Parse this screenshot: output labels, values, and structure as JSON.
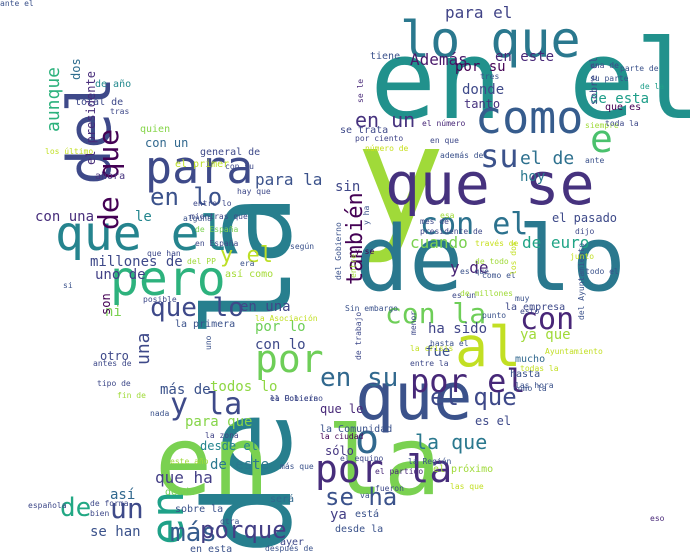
{
  "words": [
    {
      "text": "y",
      "color": "#a0da39"
    },
    {
      "text": "de la",
      "color": "#277f8e"
    },
    {
      "text": "en el",
      "color": "#21918c"
    },
    {
      "text": "en la",
      "color": "#7ad151"
    },
    {
      "text": "de lo",
      "color": "#2a788e"
    },
    {
      "text": "que se",
      "color": "#46327e"
    },
    {
      "text": "del",
      "color": "#3e4989"
    },
    {
      "text": "lo que",
      "color": "#2a788e"
    },
    {
      "text": "como",
      "color": "#365c8d"
    },
    {
      "text": "para",
      "color": "#3e4a89"
    },
    {
      "text": "que el",
      "color": "#25848e"
    },
    {
      "text": "pero",
      "color": "#2db27d"
    },
    {
      "text": "que",
      "color": "#3b528b"
    },
    {
      "text": "al",
      "color": "#c2df23"
    },
    {
      "text": "en",
      "color": "#1fa188"
    },
    {
      "text": "por la",
      "color": "#472d7b"
    },
    {
      "text": "o",
      "color": "#31688e"
    },
    {
      "text": "por el",
      "color": "#472878"
    },
    {
      "text": "e",
      "color": "#4ac16d"
    },
    {
      "text": "con el",
      "color": "#2c728e"
    },
    {
      "text": "por",
      "color": "#6ece58"
    },
    {
      "text": "su",
      "color": "#3b528b"
    },
    {
      "text": "en su",
      "color": "#31688e"
    },
    {
      "text": "y la",
      "color": "#3e4a89"
    },
    {
      "text": "de que",
      "color": "#440154"
    },
    {
      "text": "con la",
      "color": "#6ece58"
    },
    {
      "text": "con",
      "color": "#482677"
    },
    {
      "text": "que lo",
      "color": "#3e4989"
    },
    {
      "text": "en lo",
      "color": "#3b528b"
    },
    {
      "text": "el que",
      "color": "#3e4989"
    },
    {
      "text": "se ha",
      "color": "#3b528b"
    },
    {
      "text": "de",
      "color": "#22a884"
    },
    {
      "text": "un",
      "color": "#3e4a89"
    },
    {
      "text": "más",
      "color": "#365c8d"
    },
    {
      "text": "porque",
      "color": "#433e85"
    },
    {
      "text": "también",
      "color": "#440154"
    },
    {
      "text": "en un",
      "color": "#46327e"
    },
    {
      "text": "el de",
      "color": "#2d708e"
    },
    {
      "text": "de euro",
      "color": "#20a486"
    },
    {
      "text": "cuando",
      "color": "#7ad151"
    },
    {
      "text": "la que",
      "color": "#2a788e"
    },
    {
      "text": "aunque",
      "color": "#2db27d"
    },
    {
      "text": "para el",
      "color": "#414487"
    },
    {
      "text": "Además",
      "color": "#48186a"
    },
    {
      "text": "en este",
      "color": "#482878"
    },
    {
      "text": "por su",
      "color": "#440154"
    },
    {
      "text": "de esta",
      "color": "#1f9e89"
    },
    {
      "text": "que es",
      "color": "#440154"
    },
    {
      "text": "donde",
      "color": "#3e4989"
    },
    {
      "text": "tanto",
      "color": "#46327e"
    },
    {
      "text": "y de",
      "color": "#482475"
    },
    {
      "text": "una",
      "color": "#3e4989"
    },
    {
      "text": "sin",
      "color": "#3f4788"
    },
    {
      "text": "hoy",
      "color": "#2a788e"
    },
    {
      "text": "el pasado",
      "color": "#3e4a89"
    },
    {
      "text": "para la",
      "color": "#3b528b"
    },
    {
      "text": "con una",
      "color": "#472d7b"
    },
    {
      "text": "le",
      "color": "#24868e"
    },
    {
      "text": "y el",
      "color": "#bddf26"
    },
    {
      "text": "millones de",
      "color": "#3e4989"
    },
    {
      "text": "uno de",
      "color": "#424086"
    },
    {
      "text": "ni",
      "color": "#7ad151"
    },
    {
      "text": "son",
      "color": "#440154"
    },
    {
      "text": "en una",
      "color": "#404688"
    },
    {
      "text": "por lo",
      "color": "#6ece58"
    },
    {
      "text": "con lo",
      "color": "#3e4989"
    },
    {
      "text": "ha sido",
      "color": "#404588"
    },
    {
      "text": "fue",
      "color": "#3b528b"
    },
    {
      "text": "ya que",
      "color": "#a0da39"
    },
    {
      "text": "otro",
      "color": "#3e4989"
    },
    {
      "text": "más de",
      "color": "#3b528b"
    },
    {
      "text": "todos lo",
      "color": "#8fd744"
    },
    {
      "text": "para que",
      "color": "#86d549"
    },
    {
      "text": "desde el",
      "color": "#25848e"
    },
    {
      "text": "que ha",
      "color": "#433e85"
    },
    {
      "text": "de este",
      "color": "#2a788e"
    },
    {
      "text": "así",
      "color": "#31688e"
    },
    {
      "text": "se han",
      "color": "#3b528b"
    },
    {
      "text": "que le",
      "color": "#482878"
    },
    {
      "text": "sólo",
      "color": "#453581"
    },
    {
      "text": "ya",
      "color": "#433e85"
    },
    {
      "text": "mucho",
      "color": "#31688e"
    },
    {
      "text": "es el",
      "color": "#3e4989"
    },
    {
      "text": "hasta",
      "color": "#3b528b"
    },
    {
      "text": "con un",
      "color": "#31688e"
    },
    {
      "text": "quien",
      "color": "#86d549"
    },
    {
      "text": "dos",
      "color": "#2e6d8e"
    },
    {
      "text": "el presidente",
      "color": "#472c7a"
    },
    {
      "text": "tiene",
      "color": "#3b528b"
    },
    {
      "text": "de año",
      "color": "#23898e"
    },
    {
      "text": "total de",
      "color": "#3e4989"
    },
    {
      "text": "general de",
      "color": "#3e4989"
    },
    {
      "text": "el primer",
      "color": "#bddf26"
    },
    {
      "text": "ahora",
      "color": "#46337f"
    },
    {
      "text": "se trata",
      "color": "#3e4989"
    },
    {
      "text": "por ciento",
      "color": "#404588"
    },
    {
      "text": "el número",
      "color": "#482878"
    },
    {
      "text": "número de",
      "color": "#c8e020"
    },
    {
      "text": "sobre el",
      "color": "#3e4989"
    },
    {
      "text": "mientras que",
      "color": "#3e4989"
    },
    {
      "text": "en España",
      "color": "#3e4989"
    },
    {
      "text": "de España",
      "color": "#7ad151"
    },
    {
      "text": "así como",
      "color": "#a5db36"
    },
    {
      "text": "la primera",
      "color": "#3b528b"
    },
    {
      "text": "del Gobierno",
      "color": "#3b528b"
    },
    {
      "text": "el Gobierno",
      "color": "#3e4989"
    },
    {
      "text": "la Policía",
      "color": "#3e4989"
    },
    {
      "text": "la Comunidad",
      "color": "#3b528b"
    },
    {
      "text": "la ciudad",
      "color": "#440154"
    },
    {
      "text": "la zona",
      "color": "#414487"
    },
    {
      "text": "la Región",
      "color": "#3b528b"
    },
    {
      "text": "el partido",
      "color": "#482878"
    },
    {
      "text": "fueron",
      "color": "#3e4989"
    },
    {
      "text": "el próximo",
      "color": "#a0da39"
    },
    {
      "text": "desde",
      "color": "#75d054"
    },
    {
      "text": "sobre la",
      "color": "#3b528b"
    },
    {
      "text": "será",
      "color": "#31688e"
    },
    {
      "text": "desde la",
      "color": "#3b528b"
    },
    {
      "text": "está",
      "color": "#3b528b"
    },
    {
      "text": "ayer",
      "color": "#3e4989"
    },
    {
      "text": "en esta",
      "color": "#3b528b"
    },
    {
      "text": "después de",
      "color": "#3b528b"
    },
    {
      "text": "de forma",
      "color": "#3e4989"
    },
    {
      "text": "bien",
      "color": "#3e4989"
    },
    {
      "text": "otra",
      "color": "#3b528b"
    },
    {
      "text": "este año",
      "color": "#a0da39"
    },
    {
      "text": "española",
      "color": "#3e4989"
    },
    {
      "text": "eso",
      "color": "#482878"
    },
    {
      "text": "va",
      "color": "#3b528b"
    },
    {
      "text": "del Ayuntamiento",
      "color": "#3b528b"
    },
    {
      "text": "Ayuntamiento",
      "color": "#c2df23"
    },
    {
      "text": "la empresa",
      "color": "#3e4989"
    },
    {
      "text": "como el",
      "color": "#3b528b"
    },
    {
      "text": "es un",
      "color": "#3e4989"
    },
    {
      "text": "de millones",
      "color": "#a0da39"
    },
    {
      "text": "punto",
      "color": "#3b528b"
    },
    {
      "text": "junto",
      "color": "#c2df23"
    },
    {
      "text": "todo el",
      "color": "#3b528b"
    },
    {
      "text": "dijo",
      "color": "#3e4989"
    },
    {
      "text": "su parte",
      "color": "#3b528b"
    },
    {
      "text": "parte de",
      "color": "#3b528b"
    },
    {
      "text": "una de",
      "color": "#3e4989"
    },
    {
      "text": "de la",
      "color": "#1f9e89"
    },
    {
      "text": "siempre",
      "color": "#a0da39"
    },
    {
      "text": "toda la",
      "color": "#3e4989"
    },
    {
      "text": "ante",
      "color": "#3b528b"
    },
    {
      "text": "esa",
      "color": "#a0da39"
    },
    {
      "text": "mes de",
      "color": "#3e4989"
    },
    {
      "text": "presidente de",
      "color": "#3e4989"
    },
    {
      "text": "y ha",
      "color": "#3b528b"
    },
    {
      "text": "y se",
      "color": "#440154"
    },
    {
      "text": "través de",
      "color": "#c8e020"
    },
    {
      "text": "los dos",
      "color": "#c2df23"
    },
    {
      "text": "de todo",
      "color": "#a0da39"
    },
    {
      "text": "es que",
      "color": "#3b528b"
    },
    {
      "text": "tres",
      "color": "#3b528b"
    },
    {
      "text": "se le",
      "color": "#482878"
    },
    {
      "text": "en que",
      "color": "#3e4989"
    },
    {
      "text": "los último",
      "color": "#c2df23"
    },
    {
      "text": "tras",
      "color": "#3e4989"
    },
    {
      "text": "con su",
      "color": "#3e4989"
    },
    {
      "text": "hay que",
      "color": "#3e4989"
    },
    {
      "text": "alguna",
      "color": "#3b528b"
    },
    {
      "text": "entre lo",
      "color": "#3e4989"
    },
    {
      "text": "según",
      "color": "#3b528b"
    },
    {
      "text": "del PP",
      "color": "#a0da39"
    },
    {
      "text": "era",
      "color": "#3b528b"
    },
    {
      "text": "que han",
      "color": "#3e4989"
    },
    {
      "text": "si",
      "color": "#3b528b"
    },
    {
      "text": "posible",
      "color": "#3e4989"
    },
    {
      "text": "la Asociación",
      "color": "#c2df23"
    },
    {
      "text": "Sin embargo",
      "color": "#3b528b"
    },
    {
      "text": "de trabajo",
      "color": "#3e4989"
    },
    {
      "text": "entre",
      "color": "#a0da39"
    },
    {
      "text": "hasta el",
      "color": "#3b528b"
    },
    {
      "text": "la crisis",
      "color": "#c2df23"
    },
    {
      "text": "menor",
      "color": "#3e4989"
    },
    {
      "text": "muy",
      "color": "#3b528b"
    },
    {
      "text": "antes de",
      "color": "#3e4989"
    },
    {
      "text": "tipo de",
      "color": "#3e4989"
    },
    {
      "text": "fin de",
      "color": "#a0da39"
    },
    {
      "text": "nada",
      "color": "#3b528b"
    },
    {
      "text": "uno",
      "color": "#3b528b"
    },
    {
      "text": "entre la",
      "color": "#3e4989"
    },
    {
      "text": "las hora",
      "color": "#3b528b"
    },
    {
      "text": "todas la",
      "color": "#c2df23"
    },
    {
      "text": "como la",
      "color": "#3b528b"
    },
    {
      "text": "el equipo",
      "color": "#3e4989"
    },
    {
      "text": "más que",
      "color": "#3b528b"
    },
    {
      "text": "las que",
      "color": "#c2df23"
    },
    {
      "text": "además de",
      "color": "#3b528b"
    },
    {
      "text": "esto",
      "color": "#3e4989"
    },
    {
      "text": "ante el",
      "color": "#3b528b"
    }
  ]
}
